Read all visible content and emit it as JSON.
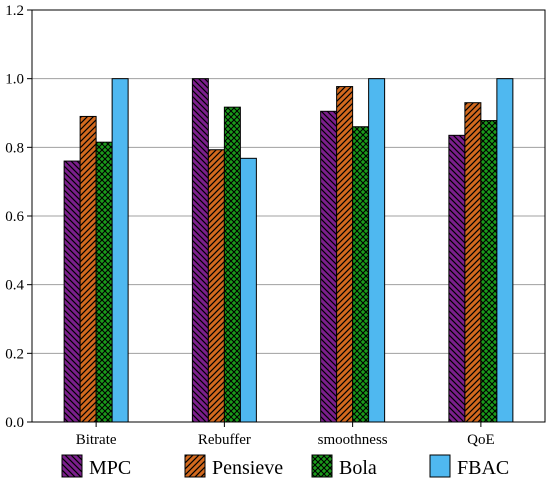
{
  "chart_data": {
    "type": "bar",
    "categories": [
      "Bitrate",
      "Rebuffer",
      "smoothness",
      "QoE"
    ],
    "series": [
      {
        "name": "MPC",
        "values": [
          0.76,
          1.0,
          0.905,
          0.835
        ],
        "color": "#7b1f8c",
        "pattern": "hatch-diagonal-back"
      },
      {
        "name": "Pensieve",
        "values": [
          0.89,
          0.793,
          0.977,
          0.93
        ],
        "color": "#d2691e",
        "pattern": "hatch-diagonal-forward"
      },
      {
        "name": "Bola",
        "values": [
          0.815,
          0.917,
          0.86,
          0.878
        ],
        "color": "#1a9a1a",
        "pattern": "crosshatch"
      },
      {
        "name": "FBAC",
        "values": [
          1.0,
          0.768,
          1.0,
          1.0
        ],
        "color": "#4fb8f0",
        "pattern": "solid"
      }
    ],
    "ylim": [
      0,
      1.2
    ],
    "yticks": [
      "0.0",
      "0.2",
      "0.4",
      "0.6",
      "0.8",
      "1.0",
      "1.2"
    ],
    "grid": true,
    "legend_position": "bottom",
    "title": "",
    "xlabel": "",
    "ylabel": ""
  }
}
